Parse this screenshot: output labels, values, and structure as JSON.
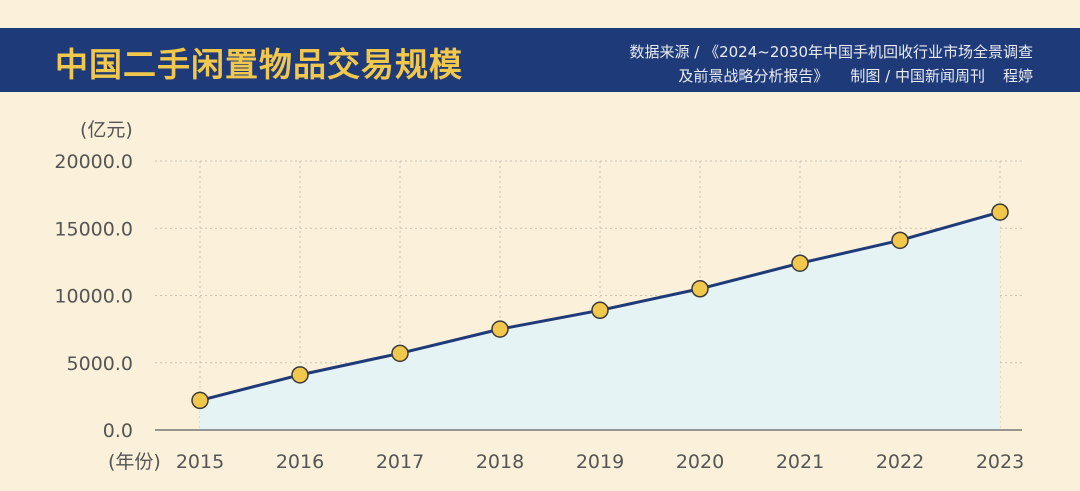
{
  "header": {
    "title": "中国二手闲置物品交易规模",
    "source_line1": "数据来源 / 《2024~2030年中国手机回收行业市场全景调查",
    "source_line2": "及前景战略分析报告》",
    "credit": "制图 / 中国新闻周刊",
    "author": "程婷"
  },
  "colors": {
    "header_bg": "#1f3a78",
    "title": "#f2c84c",
    "line": "#1f3a78",
    "marker": "#f2c84c",
    "area": "#e6f3f4",
    "background": "#fbf1db"
  },
  "chart_data": {
    "type": "line",
    "title": "中国二手闲置物品交易规模",
    "ylabel": "(亿元)",
    "xlabel": "(年份)",
    "categories": [
      "2015",
      "2016",
      "2017",
      "2018",
      "2019",
      "2020",
      "2021",
      "2022",
      "2023"
    ],
    "values": [
      2200,
      4100,
      5700,
      7500,
      8900,
      10500,
      12400,
      14100,
      16200
    ],
    "ylim": [
      0,
      20000
    ],
    "yticks": [
      "0.0",
      "5000.0",
      "10000.0",
      "15000.0",
      "20000.0"
    ],
    "area_fill": true,
    "grid": "dotted",
    "legend": "none"
  }
}
